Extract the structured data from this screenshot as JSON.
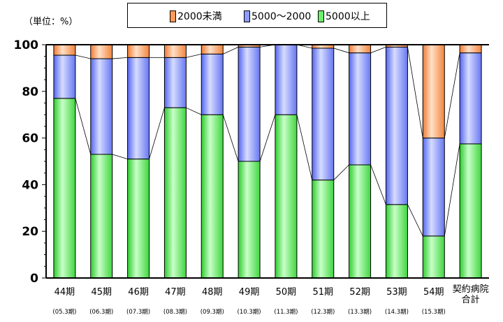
{
  "unit_label": "（単位：%）",
  "legend": [
    {
      "label": "2000未満",
      "color": "#ff9a5a"
    },
    {
      "label": "5000～2000",
      "color": "#8c9cff"
    },
    {
      "label": "5000以上",
      "color": "#6cf06c"
    }
  ],
  "chart_data": {
    "type": "bar",
    "stacked": true,
    "ylim": [
      0,
      100
    ],
    "yticks": [
      0,
      20,
      40,
      60,
      80,
      100
    ],
    "grid": false,
    "legend_position": "top",
    "categories": [
      "44期",
      "45期",
      "46期",
      "47期",
      "48期",
      "49期",
      "50期",
      "51期",
      "52期",
      "53期",
      "54期",
      "契約病院合計"
    ],
    "sublabels": [
      "(05.3期)",
      "(06.3期)",
      "(07.3期)",
      "(08.3期)",
      "(09.3期)",
      "(10.3期)",
      "(11.3期)",
      "(12.3期)",
      "(13.3期)",
      "(14.3期)",
      "(15.3期)",
      ""
    ],
    "series": [
      {
        "name": "5000以上",
        "color": "#6cf06c",
        "values": [
          77,
          53,
          51,
          73,
          70,
          50,
          70,
          42,
          48.5,
          31.5,
          18,
          57.5
        ]
      },
      {
        "name": "5000～2000",
        "color": "#8c9cff",
        "values": [
          18.5,
          41,
          43.5,
          21.5,
          26,
          49,
          30,
          56.5,
          48,
          67.5,
          42,
          39
        ]
      },
      {
        "name": "2000未満",
        "color": "#ff9a5a",
        "values": [
          4.5,
          6,
          5.5,
          5.5,
          4,
          1,
          0,
          1.5,
          3.5,
          1,
          40,
          3.5
        ]
      }
    ]
  }
}
